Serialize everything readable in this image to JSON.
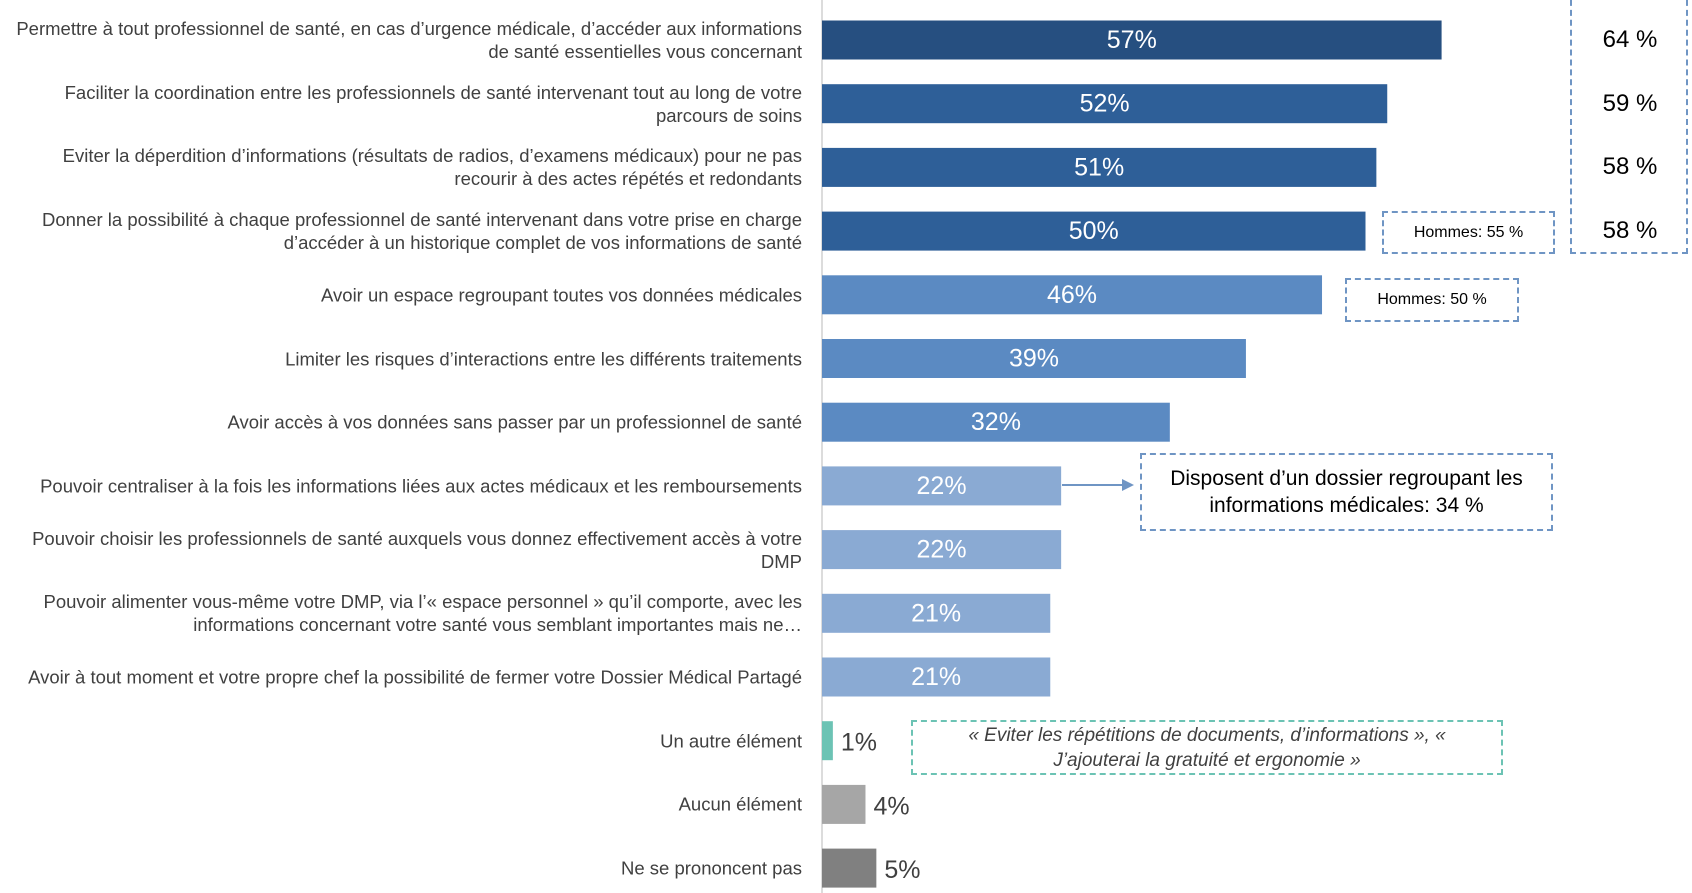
{
  "chart_data": {
    "type": "bar",
    "orientation": "horizontal",
    "categories": [
      "Permettre à tout professionnel de santé, en cas d’urgence médicale, d’accéder aux informations de santé essentielles vous concernant",
      "Faciliter la coordination entre les professionnels de santé intervenant tout au long de votre parcours de soins",
      "Eviter la déperdition d’informations (résultats de radios, d’examens médicaux) pour ne pas recourir à des actes répétés et redondants",
      "Donner la possibilité à chaque professionnel de santé intervenant dans votre prise en charge d’accéder à un historique complet de vos informations de santé",
      "Avoir un espace regroupant toutes vos données médicales",
      "Limiter les risques d’interactions entre les différents traitements",
      "Avoir accès à vos données sans passer par un professionnel de santé",
      "Pouvoir centraliser à la fois les informations liées aux actes médicaux et les remboursements",
      "Pouvoir choisir les professionnels de santé auxquels vous donnez effectivement accès à votre DMP",
      "Pouvoir alimenter vous-même votre DMP, via l’« espace personnel » qu’il comporte, avec les informations concernant votre santé vous semblant importantes mais ne…",
      "Avoir à tout moment et votre propre chef la possibilité de fermer votre Dossier Médical Partagé",
      "Un autre élément",
      "Aucun élément",
      "Ne se prononcent pas"
    ],
    "values": [
      57,
      52,
      51,
      50,
      46,
      39,
      32,
      22,
      22,
      21,
      21,
      1,
      4,
      5
    ],
    "value_labels": [
      "57%",
      "52%",
      "51%",
      "50%",
      "46%",
      "39%",
      "32%",
      "22%",
      "22%",
      "21%",
      "21%",
      "1%",
      "4%",
      "5%"
    ],
    "colors": [
      "#264f80",
      "#2e5f98",
      "#2e5f98",
      "#2e5f98",
      "#5b8ac2",
      "#5b8ac2",
      "#5b8ac2",
      "#8aaad3",
      "#8aaad3",
      "#8aaad3",
      "#8aaad3",
      "#6cc3b4",
      "#a6a6a6",
      "#808080"
    ],
    "xlim": [
      0,
      100
    ],
    "annotations": {
      "side_values": [
        "64 %",
        "59 %",
        "58 %",
        "58 %"
      ],
      "hommes_1": "Hommes: 55 %",
      "hommes_2": "Hommes: 50 %",
      "dossier": "Disposent d’un dossier regroupant les informations médicales: 34 %",
      "quote": "« Eviter les répétitions de documents, d’informations », « J’ajouterai la gratuité et ergonomie »"
    }
  }
}
